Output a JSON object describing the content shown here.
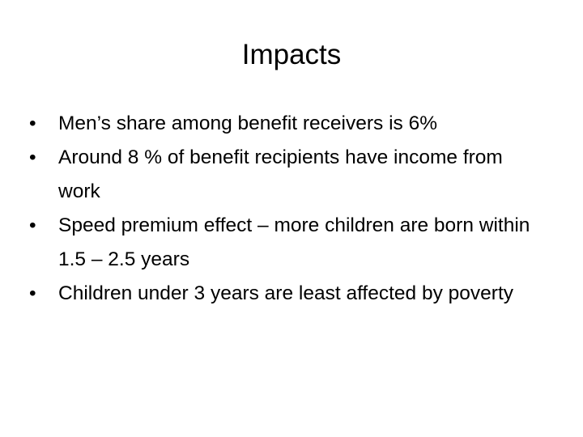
{
  "title": "Impacts",
  "bullets": [
    "Men’s share among benefit receivers is 6%",
    "Around 8 % of benefit recipients have income from work",
    "Speed premium effect – more children are born within  1.5 – 2.5 years",
    "Children under 3 years are least affected by poverty"
  ]
}
